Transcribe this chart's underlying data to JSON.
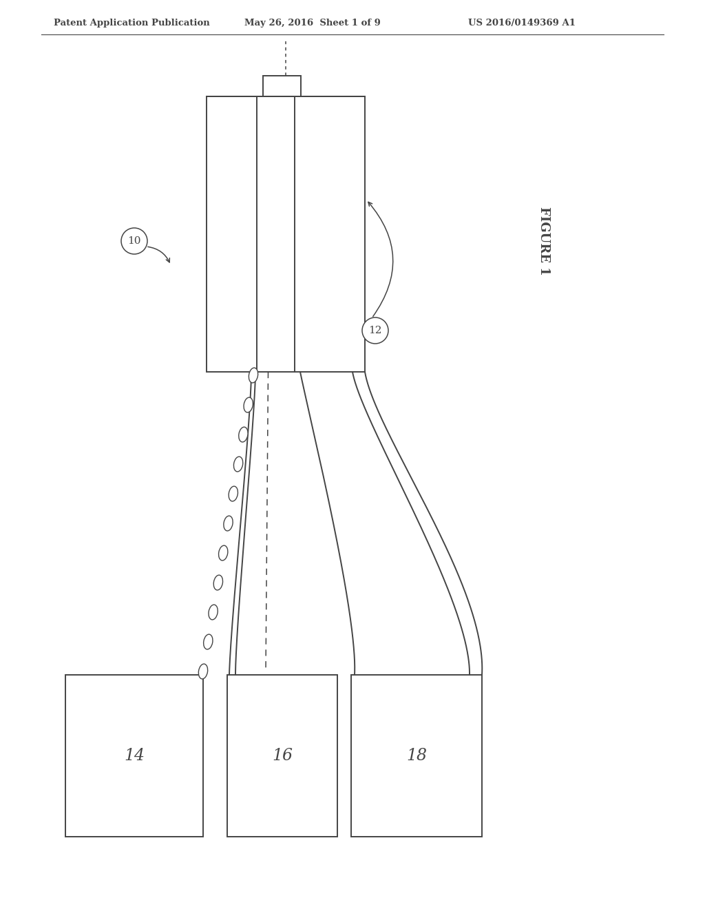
{
  "bg_color": "#ffffff",
  "line_color": "#444444",
  "header_left": "Patent Application Publication",
  "header_center": "May 26, 2016  Sheet 1 of 9",
  "header_right": "US 2016/0149369 A1",
  "figure_label": "FIGURE 1",
  "label_10": "10",
  "label_12": "12",
  "label_14": "14",
  "label_16": "16",
  "label_18": "18"
}
